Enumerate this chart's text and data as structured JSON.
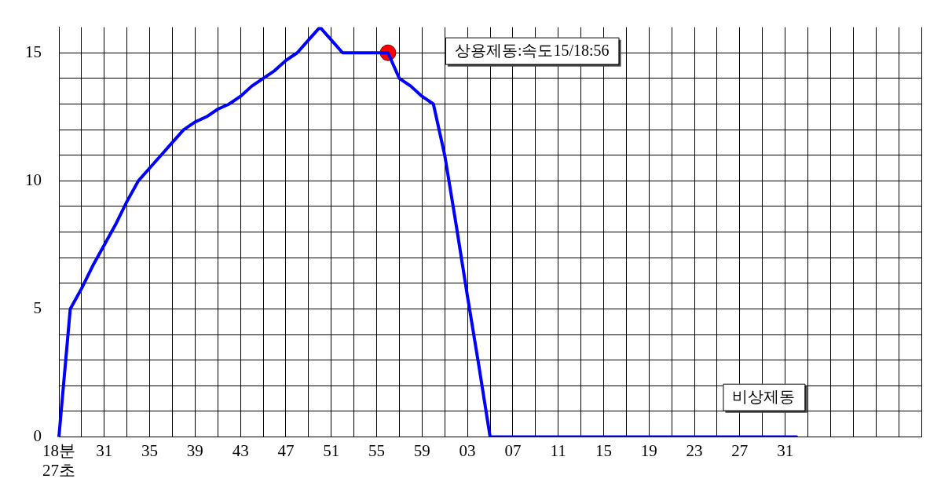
{
  "chart_data": {
    "type": "line",
    "categories": [
      "18분\n27초",
      null,
      null,
      null,
      "31",
      null,
      null,
      null,
      "35",
      null,
      null,
      null,
      "39",
      null,
      null,
      null,
      "43",
      null,
      null,
      null,
      "47",
      null,
      null,
      null,
      "51",
      null,
      null,
      null,
      "55",
      null,
      null,
      null,
      "59",
      null,
      null,
      null,
      "03",
      null,
      null,
      null,
      "07",
      null,
      null,
      null,
      "11",
      null,
      null,
      null,
      "15",
      null,
      null,
      null,
      "19",
      null,
      null,
      null,
      "23",
      null,
      null,
      null,
      "27",
      null,
      null,
      null,
      "31",
      null,
      null,
      null,
      null,
      null,
      null,
      null,
      null,
      null,
      null,
      null,
      null
    ],
    "series": [
      {
        "color": "#0000ff",
        "values": [
          0,
          5,
          5.8,
          6.7,
          7.5,
          8.3,
          9.2,
          10,
          10.5,
          11,
          11.5,
          12,
          12.3,
          12.5,
          12.8,
          13,
          13.3,
          13.7,
          14,
          14.3,
          14.7,
          15,
          15.5,
          16,
          15.5,
          15,
          15,
          15,
          15,
          15,
          14,
          13.7,
          13.3,
          13,
          11,
          8.3,
          5.5,
          2.8,
          0,
          0,
          0,
          0,
          0,
          0,
          0,
          0,
          0,
          0,
          0,
          0,
          0,
          0,
          0,
          0,
          0,
          0,
          0,
          0,
          0,
          0,
          0,
          0,
          0,
          0,
          0,
          0,
          null,
          null,
          null,
          null,
          null,
          null,
          null,
          null,
          null,
          null,
          null
        ]
      },
      {
        "type": "scatter",
        "color": "#ff0000",
        "marker": "circle",
        "values": [
          null,
          null,
          null,
          null,
          null,
          null,
          null,
          null,
          null,
          null,
          null,
          null,
          null,
          null,
          null,
          null,
          null,
          null,
          null,
          null,
          null,
          null,
          null,
          null,
          null,
          null,
          null,
          null,
          null,
          15,
          null,
          null,
          null,
          null,
          null,
          null,
          null,
          null,
          null,
          null,
          null,
          null,
          null,
          null,
          null,
          null,
          null,
          null,
          null,
          null,
          null,
          null,
          null,
          null,
          null,
          null,
          null,
          null,
          null,
          null,
          null,
          null,
          null,
          null,
          null,
          null,
          null,
          null,
          null,
          null,
          null,
          null,
          null,
          null,
          null,
          null,
          null
        ]
      }
    ],
    "ylim": [
      0,
      16
    ],
    "yticks": [
      0,
      {
        "value": 1,
        "label": null
      },
      {
        "value": 2,
        "label": null
      },
      {
        "value": 3,
        "label": null
      },
      {
        "value": 4,
        "label": null
      },
      5,
      {
        "value": 6,
        "label": null
      },
      {
        "value": 7,
        "label": null
      },
      {
        "value": 8,
        "label": null
      },
      {
        "value": 9,
        "label": null
      },
      10,
      {
        "value": 11,
        "label": null
      },
      {
        "value": 12,
        "label": null
      },
      {
        "value": 13,
        "label": null
      },
      {
        "value": 14,
        "label": null
      },
      15
    ],
    "annotations": [
      "상용제동:속도15/18:56",
      "비상제동"
    ],
    "grid": true,
    "line_style": "solid"
  }
}
